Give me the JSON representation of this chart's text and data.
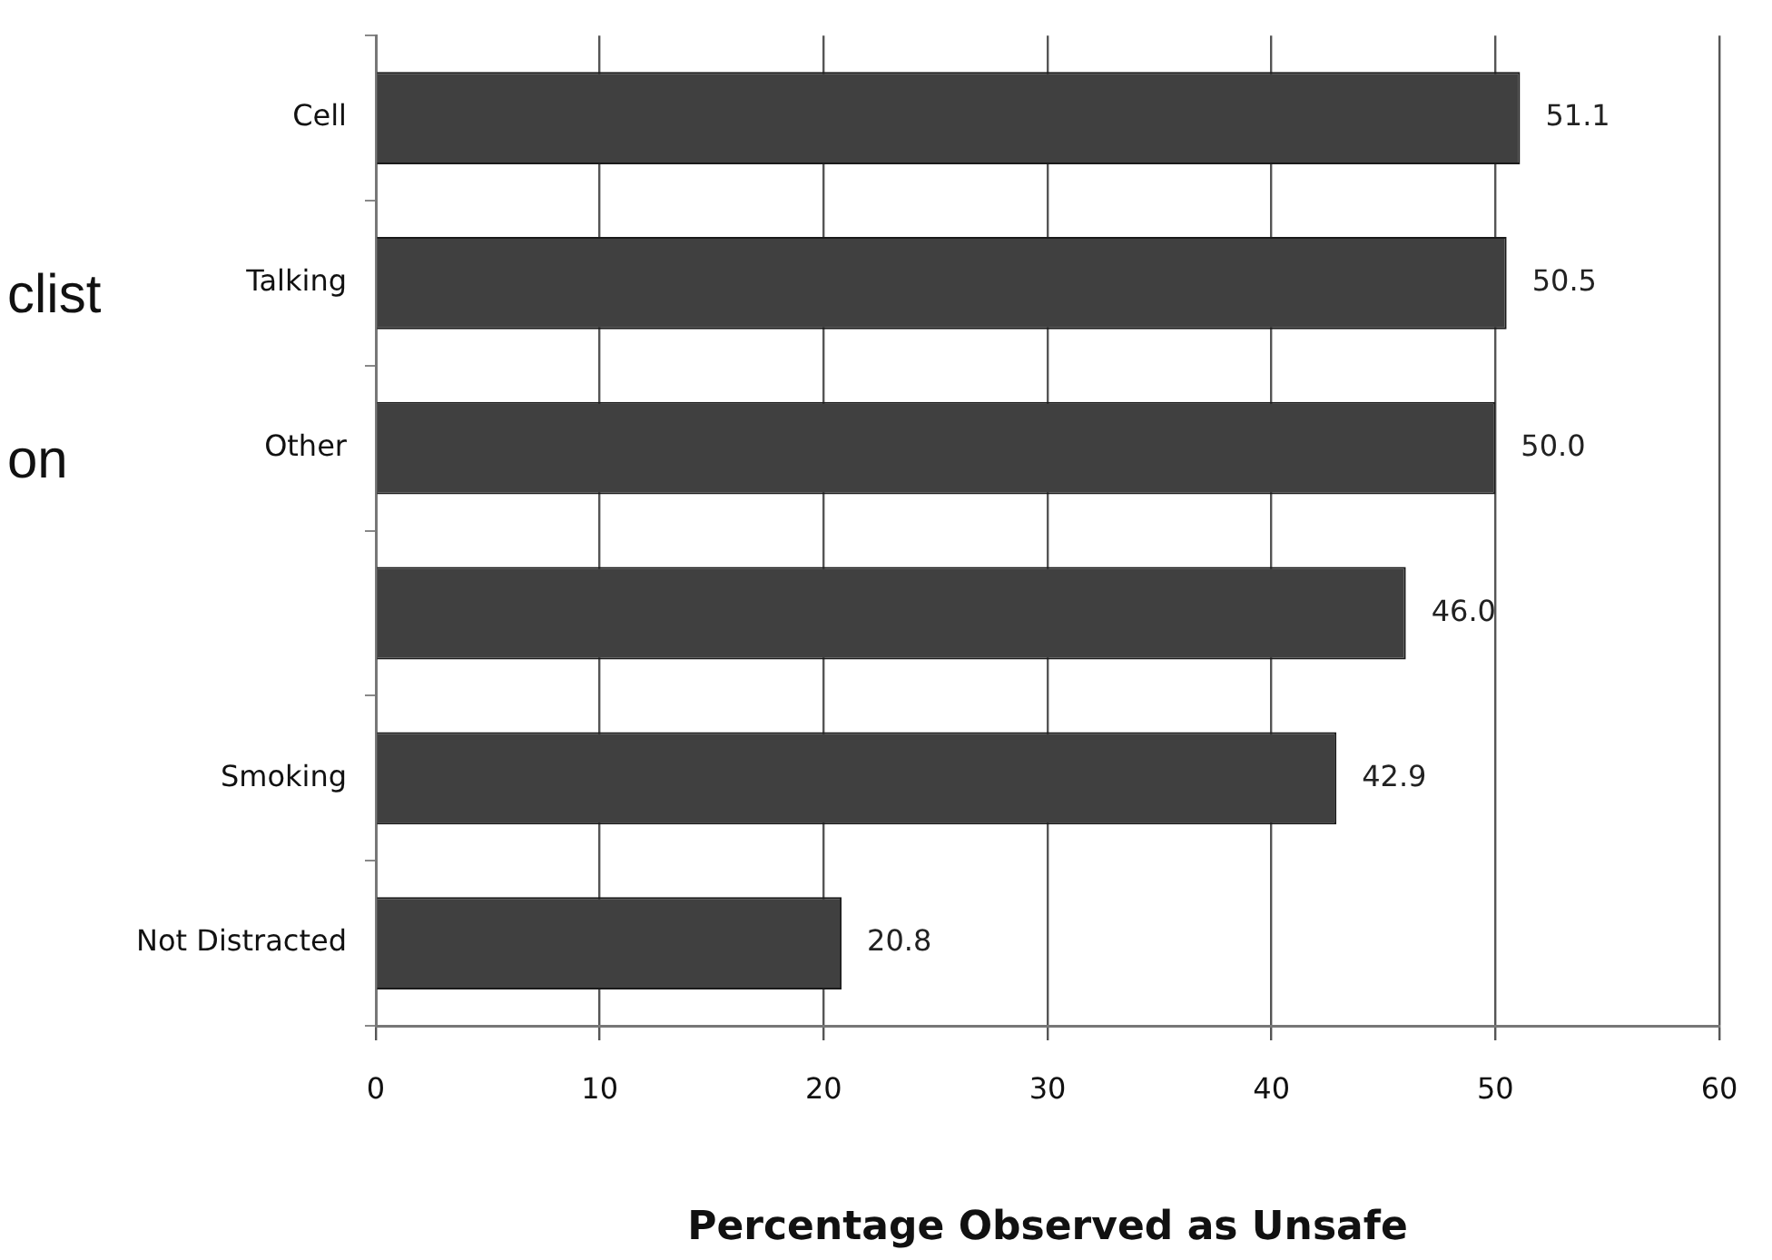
{
  "chart_data": {
    "type": "bar",
    "orientation": "horizontal",
    "categories": [
      "Cell",
      "Talking",
      "Other",
      null,
      "Smoking",
      "Not Distracted"
    ],
    "values": [
      51.1,
      50.5,
      50.0,
      46.0,
      42.9,
      20.8
    ],
    "value_labels": [
      "51.1",
      "50.5",
      "50.0",
      "46.0",
      "42.9",
      "20.8"
    ],
    "color": "#404040",
    "xlabel": "Percentage Observed as Unsafe",
    "xlim": [
      0,
      60
    ],
    "xticks": [
      0,
      10,
      20,
      30,
      40,
      50,
      60
    ],
    "grid": "x",
    "legend": false,
    "annotations": [
      "clist",
      "on"
    ]
  }
}
